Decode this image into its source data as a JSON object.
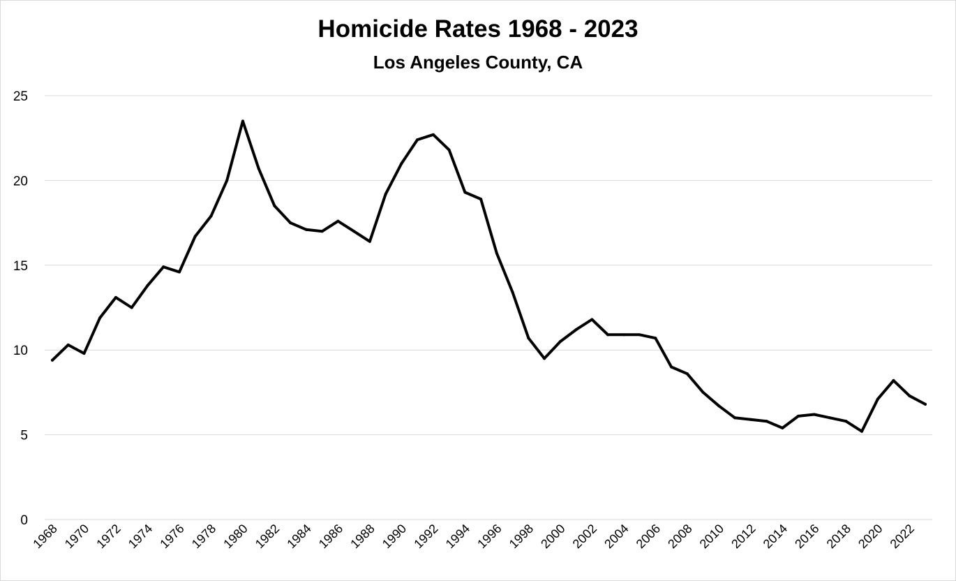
{
  "chart_data": {
    "type": "line",
    "title": "Homicide Rates 1968 - 2023",
    "subtitle": "Los Angeles County, CA",
    "xlabel": "",
    "ylabel": "",
    "ylim": [
      0,
      25
    ],
    "yticks": [
      "0",
      "5",
      "10",
      "15",
      "20",
      "25"
    ],
    "grid": "horizontal",
    "legend": "none",
    "line_color": "#000000",
    "grid_color": "#d9d9d9",
    "x": [
      1968,
      1969,
      1970,
      1971,
      1972,
      1973,
      1974,
      1975,
      1976,
      1977,
      1978,
      1979,
      1980,
      1981,
      1982,
      1983,
      1984,
      1985,
      1986,
      1987,
      1988,
      1989,
      1990,
      1991,
      1992,
      1993,
      1994,
      1995,
      1996,
      1997,
      1998,
      1999,
      2000,
      2001,
      2002,
      2003,
      2004,
      2005,
      2006,
      2007,
      2008,
      2009,
      2010,
      2011,
      2012,
      2013,
      2014,
      2015,
      2016,
      2017,
      2018,
      2019,
      2020,
      2021,
      2022,
      2023
    ],
    "xticks": [
      "1968",
      "1970",
      "1972",
      "1974",
      "1976",
      "1978",
      "1980",
      "1982",
      "1984",
      "1986",
      "1988",
      "1990",
      "1992",
      "1994",
      "1996",
      "1998",
      "2000",
      "2002",
      "2004",
      "2006",
      "2008",
      "2010",
      "2012",
      "2014",
      "2016",
      "2018",
      "2020",
      "2022"
    ],
    "series": [
      {
        "values": [
          9.4,
          10.3,
          9.8,
          11.9,
          13.1,
          12.5,
          13.8,
          14.9,
          14.6,
          16.7,
          17.9,
          20.0,
          23.5,
          20.7,
          18.5,
          17.5,
          17.1,
          17.0,
          17.6,
          17.0,
          16.4,
          19.2,
          21.0,
          22.4,
          22.7,
          21.8,
          19.3,
          18.9,
          15.7,
          13.4,
          10.7,
          9.5,
          10.5,
          11.2,
          11.8,
          10.9,
          10.9,
          10.9,
          10.7,
          9.0,
          8.6,
          7.5,
          6.7,
          6.0,
          5.9,
          5.8,
          5.4,
          6.1,
          6.2,
          6.0,
          5.8,
          5.2,
          7.1,
          8.2,
          7.3,
          6.8
        ]
      }
    ]
  }
}
